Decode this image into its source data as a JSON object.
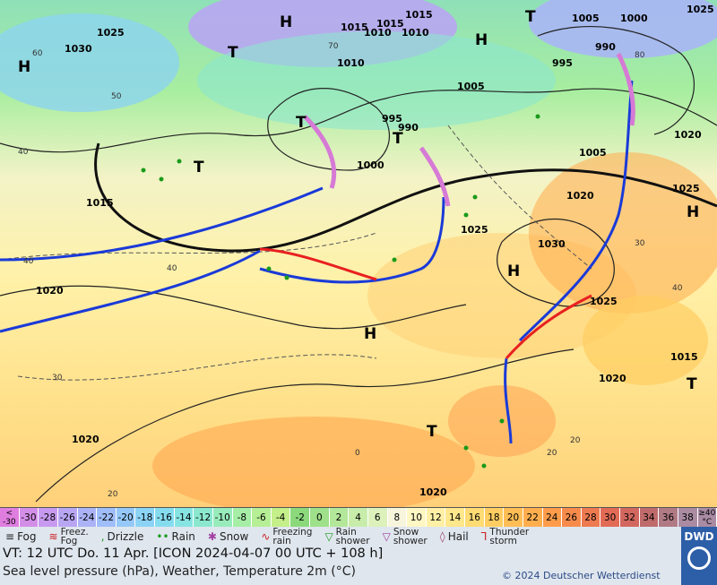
{
  "map": {
    "pressure_labels": [
      "1015",
      "1030",
      "1025",
      "1015",
      "1015",
      "1010",
      "1010",
      "1005",
      "1000",
      "995",
      "990",
      "990",
      "995",
      "1005",
      "1000",
      "1010",
      "1005",
      "1015",
      "1020",
      "1025",
      "1020",
      "1020",
      "1025",
      "1030",
      "1025",
      "1015",
      "1020",
      "1020",
      "1020",
      "1025"
    ],
    "high_low_markers": [
      "H",
      "H",
      "H",
      "H",
      "H",
      "H",
      "T",
      "T",
      "T",
      "T",
      "T",
      "T",
      "T"
    ],
    "temperature_contour_labels": [
      "40",
      "50",
      "60",
      "70",
      "80",
      "40",
      "30",
      "40",
      "30",
      "20",
      "20",
      "20",
      "0",
      "40"
    ]
  },
  "temperature_scale": {
    "unit_top": "<",
    "unit_bottom": "-30",
    "steps": [
      "-30",
      "-28",
      "-26",
      "-24",
      "-22",
      "-20",
      "-18",
      "-16",
      "-14",
      "-12",
      "-10",
      "-8",
      "-6",
      "-4",
      "-2",
      "0",
      "2",
      "4",
      "6",
      "8",
      "10",
      "12",
      "14",
      "16",
      "18",
      "20",
      "22",
      "24",
      "26",
      "28",
      "30",
      "32",
      "34",
      "36",
      "38"
    ],
    "last_top": "≥40",
    "last_bottom": "°C",
    "colors": [
      "#e07ee0",
      "#d38ee8",
      "#c79aef",
      "#b9a6f3",
      "#abb3f6",
      "#9fbdf8",
      "#95c8f8",
      "#8cd3f6",
      "#86dcef",
      "#86e4e2",
      "#8be8cf",
      "#98ebbb",
      "#a6eea6",
      "#b6ef95",
      "#c4ef89",
      "#8cd97c",
      "#9fe08a",
      "#b3e79a",
      "#c8edaa",
      "#dcf1bb",
      "#f7f5dc",
      "#fff8c4",
      "#fff0a6",
      "#ffe78c",
      "#ffdb74",
      "#ffcd61",
      "#ffbe55",
      "#ffae4e",
      "#ff9c4b",
      "#f78b4c",
      "#ee7a50",
      "#e26b56",
      "#d2675f",
      "#bf6a6b",
      "#b07a85",
      "#aa8ba2"
    ]
  },
  "legend": {
    "fog": "Fog",
    "freezing_fog_top": "Freez.",
    "freezing_fog_bottom": "Fog",
    "drizzle": "Drizzle",
    "rain": "Rain",
    "snow": "Snow",
    "freezing_rain_top": "Freezing",
    "freezing_rain_bottom": "rain",
    "rain_shower_top": "Rain",
    "rain_shower_bottom": "shower",
    "snow_shower_top": "Snow",
    "snow_shower_bottom": "shower",
    "hail": "Hail",
    "thunderstorm_top": "Thunder",
    "thunderstorm_bottom": "storm"
  },
  "footer": {
    "valid_time": "VT: 12 UTC Do.  11 Apr. [ICON 2024-04-07  00 UTC + 108 h]",
    "description": "Sea level pressure (hPa), Weather, Temperature 2m (°C)",
    "copyright": "© 2024 Deutscher Wetterdienst",
    "logo_text": "DWD"
  }
}
